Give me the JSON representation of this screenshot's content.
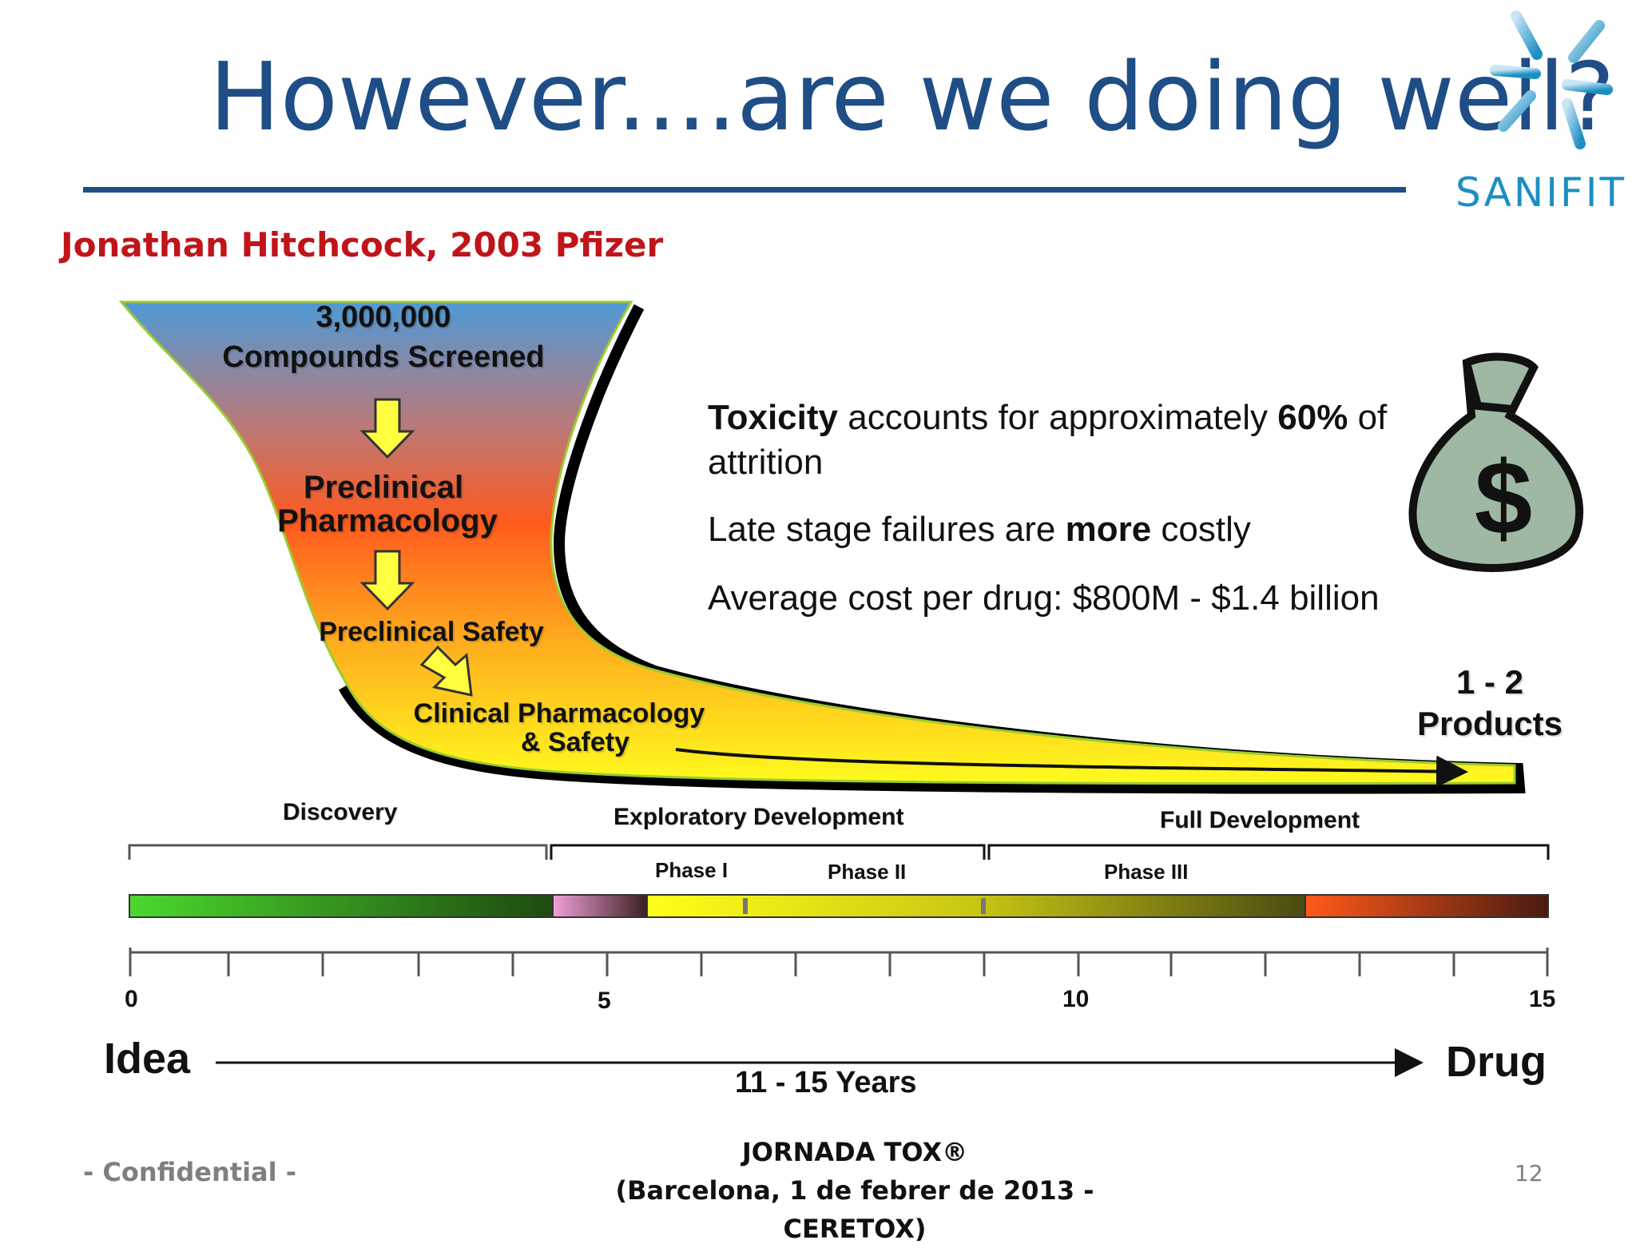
{
  "slide": {
    "title": "However....are we doing well?",
    "author": "Jonathan Hitchcock, 2003 Pfizer",
    "logo_text": "SANIFIT",
    "page_number": "12"
  },
  "funnel": {
    "stages": [
      {
        "line1": "3,000,000",
        "line2": "Compounds Screened"
      },
      {
        "line1": "Preclinical",
        "line2": "Pharmacology"
      },
      {
        "line1": "Preclinical Safety",
        "line2": ""
      },
      {
        "line1": "Clinical Pharmacology",
        "line2": "& Safety"
      }
    ],
    "outcome": {
      "line1": "1 - 2",
      "line2": "Products"
    }
  },
  "notes": {
    "toxicity_bold": "Toxicity",
    "toxicity_mid": " accounts for approximately ",
    "toxicity_pct": "60%",
    "toxicity_end": " of",
    "toxicity_cont": "attrition",
    "late_start": "Late stage failures are ",
    "late_bold": "more",
    "late_end": " costly",
    "cost": "Average cost per drug: $800M - $1.4 billion"
  },
  "timeline": {
    "segments": [
      "Discovery",
      "Exploratory Development",
      "Full Development"
    ],
    "phases": [
      "Phase I",
      "Phase II",
      "Phase III"
    ],
    "ticks": [
      "0",
      "5",
      "10",
      "15"
    ],
    "start_label": "Idea",
    "end_label": "Drug",
    "duration": "11 - 15 Years"
  },
  "footer": {
    "left": "- Confidential -",
    "center_line1": "JORNADA TOX®",
    "center_line2": "(Barcelona, 1 de febrer de 2013 - CERETOX)"
  },
  "colors": {
    "title": "#1f4e86",
    "author": "#c0141a",
    "logo": "#1b8ec2"
  }
}
